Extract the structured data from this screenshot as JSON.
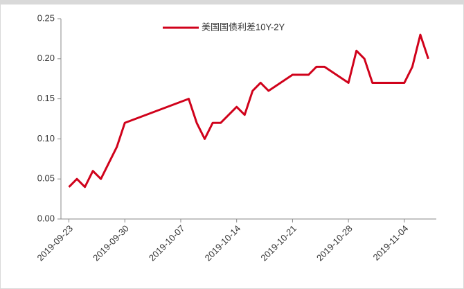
{
  "chart_data": {
    "type": "line",
    "x": [
      "2019-09-23",
      "2019-09-24",
      "2019-09-25",
      "2019-09-26",
      "2019-09-27",
      "2019-09-29",
      "2019-09-30",
      "2019-10-08",
      "2019-10-09",
      "2019-10-10",
      "2019-10-11",
      "2019-10-12",
      "2019-10-14",
      "2019-10-15",
      "2019-10-16",
      "2019-10-17",
      "2019-10-18",
      "2019-10-21",
      "2019-10-22",
      "2019-10-23",
      "2019-10-24",
      "2019-10-25",
      "2019-10-28",
      "2019-10-29",
      "2019-10-30",
      "2019-10-31",
      "2019-11-01",
      "2019-11-04",
      "2019-11-05",
      "2019-11-06",
      "2019-11-07"
    ],
    "series": [
      {
        "name": "美国国债利差10Y-2Y",
        "color": "#d0021b",
        "values": [
          0.04,
          0.05,
          0.04,
          0.06,
          0.05,
          0.09,
          0.12,
          0.15,
          0.12,
          0.1,
          0.12,
          0.12,
          0.14,
          0.13,
          0.16,
          0.17,
          0.16,
          0.18,
          0.18,
          0.18,
          0.19,
          0.19,
          0.17,
          0.21,
          0.2,
          0.17,
          0.17,
          0.17,
          0.19,
          0.23,
          0.2
        ]
      }
    ],
    "xlim": [
      "2019-09-22",
      "2019-11-08"
    ],
    "xticks": [
      "2019-09-23",
      "2019-09-30",
      "2019-10-07",
      "2019-10-14",
      "2019-10-21",
      "2019-10-28",
      "2019-11-04"
    ],
    "ylim": [
      0,
      0.25
    ],
    "yticks": [
      {
        "value": 0,
        "label": "0.00"
      },
      {
        "value": 0.05,
        "label": "0.05"
      },
      {
        "value": 0.1,
        "label": "0.10"
      },
      {
        "value": 0.15,
        "label": "0.15"
      },
      {
        "value": 0.2,
        "label": "0.20"
      },
      {
        "value": 0.25,
        "label": "0.25"
      }
    ],
    "legend": "top"
  }
}
